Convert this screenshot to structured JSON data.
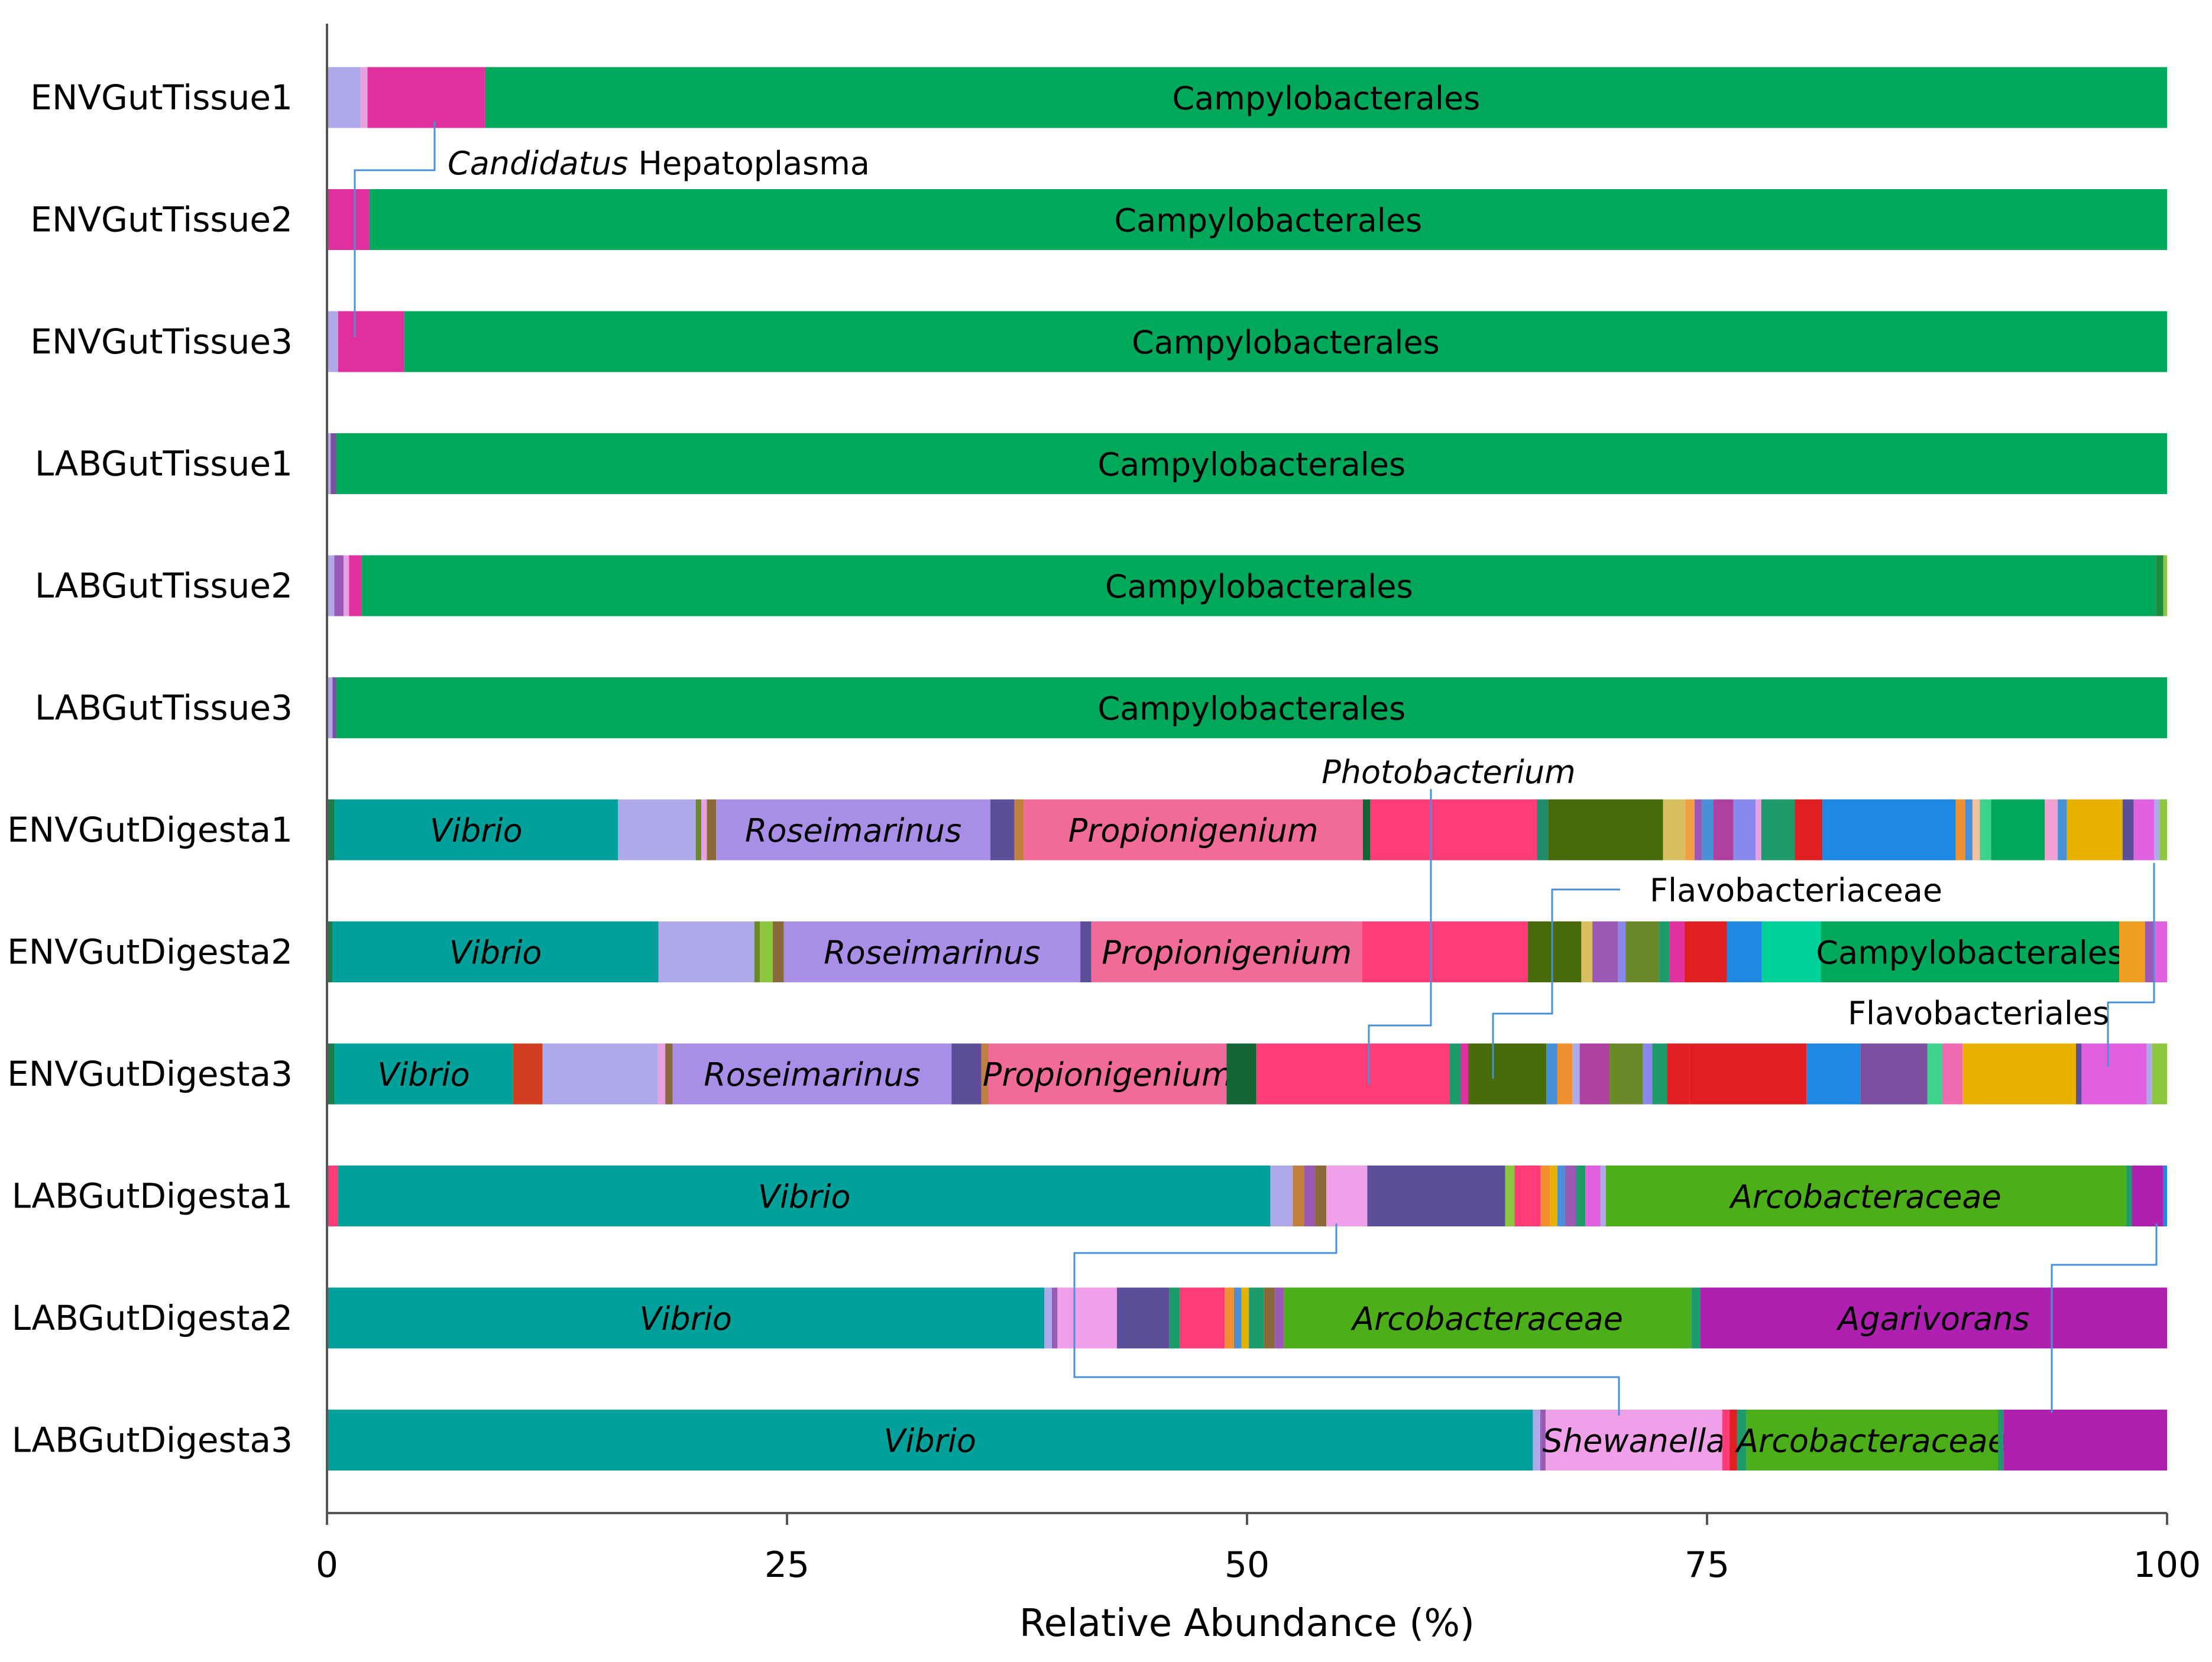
{
  "chart_data": {
    "type": "bar",
    "orientation": "horizontal",
    "stacked": true,
    "xlabel": "Relative Abundance (%)",
    "xlim": [
      0,
      100
    ],
    "xticks": [
      "0",
      "25",
      "50",
      "75",
      "100"
    ],
    "grid": false,
    "categories": [
      "ENVGutTissue1",
      "ENVGutTissue2",
      "ENVGutTissue3",
      "LABGutTissue1",
      "LABGutTissue2",
      "LABGutTissue3",
      "ENVGutDigesta1",
      "ENVGutDigesta2",
      "ENVGutDigesta3",
      "LABGutDigesta1",
      "LABGutDigesta2",
      "LABGutDigesta3"
    ],
    "samples": [
      {
        "segments": [
          {
            "v": 1.8,
            "c": "#aeaaea"
          },
          {
            "v": 0.4,
            "c": "#e8a0e0"
          },
          {
            "v": 6.4,
            "c": "#e0309f"
          },
          {
            "v": 91.4,
            "c": "#00a85a",
            "label": "Campylobacterales",
            "italic": false
          }
        ]
      },
      {
        "segments": [
          {
            "v": 2.3,
            "c": "#e0309f"
          },
          {
            "v": 97.7,
            "c": "#00a85a",
            "label": "Campylobacterales",
            "italic": false
          }
        ]
      },
      {
        "segments": [
          {
            "v": 0.6,
            "c": "#aeaaea"
          },
          {
            "v": 3.6,
            "c": "#e0309f"
          },
          {
            "v": 95.8,
            "c": "#00a85a",
            "label": "Campylobacterales",
            "italic": false
          }
        ]
      },
      {
        "segments": [
          {
            "v": 0.2,
            "c": "#aeaaea"
          },
          {
            "v": 0.3,
            "c": "#7a4fa0"
          },
          {
            "v": 99.5,
            "c": "#00a85a",
            "label": "Campylobacterales",
            "italic": false
          }
        ]
      },
      {
        "segments": [
          {
            "v": 0.4,
            "c": "#aeaaea"
          },
          {
            "v": 0.5,
            "c": "#9b59b6"
          },
          {
            "v": 0.3,
            "c": "#e8a0e0"
          },
          {
            "v": 0.7,
            "c": "#e0309f"
          },
          {
            "v": 97.5,
            "c": "#00a85a",
            "label": "Campylobacterales",
            "italic": false
          },
          {
            "v": 0.4,
            "c": "#1f8c3b"
          },
          {
            "v": 0.2,
            "c": "#8dc63f"
          }
        ]
      },
      {
        "segments": [
          {
            "v": 0.3,
            "c": "#aeaaea"
          },
          {
            "v": 0.2,
            "c": "#7a4fa0"
          },
          {
            "v": 99.5,
            "c": "#00a85a",
            "label": "Campylobacterales",
            "italic": false
          }
        ]
      },
      {
        "segments": [
          {
            "v": 0.4,
            "c": "#1f7a4a"
          },
          {
            "v": 15.3,
            "c": "#00a19a",
            "label": "Vibrio",
            "italic": true
          },
          {
            "v": 4.2,
            "c": "#aeaaea"
          },
          {
            "v": 0.3,
            "c": "#6a8a2a"
          },
          {
            "v": 0.3,
            "c": "#e8a0e0"
          },
          {
            "v": 0.5,
            "c": "#8a6a3a"
          },
          {
            "v": 14.8,
            "c": "#a98ee8",
            "label": "Roseimarinus",
            "italic": true
          },
          {
            "v": 1.3,
            "c": "#5b4f9a"
          },
          {
            "v": 0.5,
            "c": "#c08040"
          },
          {
            "v": 18.3,
            "c": "#f06a9a",
            "label": "Propionigenium",
            "italic": true
          },
          {
            "v": 0.4,
            "c": "#116633"
          },
          {
            "v": 9.0,
            "c": "#ff3b78"
          },
          {
            "v": 0.6,
            "c": "#1f8c6a"
          },
          {
            "v": 6.2,
            "c": "#476a0a"
          },
          {
            "v": 1.2,
            "c": "#d8c060"
          },
          {
            "v": 0.5,
            "c": "#f0a040"
          },
          {
            "v": 0.4,
            "c": "#9b59b6"
          },
          {
            "v": 0.6,
            "c": "#4a90d9"
          },
          {
            "v": 1.1,
            "c": "#b040a0"
          },
          {
            "v": 1.2,
            "c": "#8888ee"
          },
          {
            "v": 0.3,
            "c": "#e8a0e0"
          },
          {
            "v": 1.8,
            "c": "#1f9a6a"
          },
          {
            "v": 1.5,
            "c": "#e02020"
          },
          {
            "v": 7.2,
            "c": "#1e88e5"
          },
          {
            "v": 0.5,
            "c": "#f09030"
          },
          {
            "v": 0.4,
            "c": "#4a90d9"
          },
          {
            "v": 0.4,
            "c": "#f0c0a0"
          },
          {
            "v": 0.6,
            "c": "#3dd38a"
          },
          {
            "v": 2.9,
            "c": "#00a85a"
          },
          {
            "v": 0.7,
            "c": "#f0a0d0"
          },
          {
            "v": 0.5,
            "c": "#4a90d9"
          },
          {
            "v": 3.0,
            "c": "#e8b000"
          },
          {
            "v": 0.6,
            "c": "#5b4f9a"
          },
          {
            "v": 1.1,
            "c": "#e060e0"
          },
          {
            "v": 0.3,
            "c": "#aeaaea"
          },
          {
            "v": 0.4,
            "c": "#8dc63f"
          }
        ]
      },
      {
        "segments": [
          {
            "v": 0.3,
            "c": "#1f7a4a"
          },
          {
            "v": 17.7,
            "c": "#00a19a",
            "label": "Vibrio",
            "italic": true
          },
          {
            "v": 5.2,
            "c": "#aeaaea"
          },
          {
            "v": 0.3,
            "c": "#6a8a2a"
          },
          {
            "v": 0.7,
            "c": "#8dc63f"
          },
          {
            "v": 0.6,
            "c": "#8a6a3a"
          },
          {
            "v": 16.1,
            "c": "#a98ee8",
            "label": "Roseimarinus",
            "italic": true
          },
          {
            "v": 0.6,
            "c": "#5b4f9a"
          },
          {
            "v": 14.7,
            "c": "#f06a9a",
            "label": "Propionigenium",
            "italic": true
          },
          {
            "v": 9.0,
            "c": "#ff3b78"
          },
          {
            "v": 2.9,
            "c": "#476a0a"
          },
          {
            "v": 0.6,
            "c": "#d8c060"
          },
          {
            "v": 1.4,
            "c": "#9b59b6"
          },
          {
            "v": 0.4,
            "c": "#8888ee"
          },
          {
            "v": 1.8,
            "c": "#6a8a2a"
          },
          {
            "v": 0.6,
            "c": "#1f9a6a"
          },
          {
            "v": 0.8,
            "c": "#e0309f"
          },
          {
            "v": 2.3,
            "c": "#e02020"
          },
          {
            "v": 1.9,
            "c": "#1e88e5"
          },
          {
            "v": 3.2,
            "c": "#00d09a"
          },
          {
            "v": 16.2,
            "c": "#00a85a",
            "label": "Campylobacterales",
            "italic": false
          },
          {
            "v": 1.4,
            "c": "#f0a020"
          },
          {
            "v": 0.5,
            "c": "#9b59b6"
          },
          {
            "v": 0.7,
            "c": "#e060e0"
          }
        ]
      },
      {
        "segments": [
          {
            "v": 0.4,
            "c": "#1f7a4a"
          },
          {
            "v": 9.6,
            "c": "#00a19a",
            "label": "Vibrio",
            "italic": true
          },
          {
            "v": 1.6,
            "c": "#d04020"
          },
          {
            "v": 6.2,
            "c": "#aeaaea"
          },
          {
            "v": 0.4,
            "c": "#e8a0e0"
          },
          {
            "v": 0.4,
            "c": "#8a6a3a"
          },
          {
            "v": 15.0,
            "c": "#a98ee8",
            "label": "Roseimarinus",
            "italic": true
          },
          {
            "v": 1.6,
            "c": "#5b4f9a"
          },
          {
            "v": 0.4,
            "c": "#c08040"
          },
          {
            "v": 12.8,
            "c": "#f06a9a",
            "label": "Propionigenium",
            "italic": true
          },
          {
            "v": 1.6,
            "c": "#116633"
          },
          {
            "v": 10.4,
            "c": "#ff3b78"
          },
          {
            "v": 0.6,
            "c": "#1f9a6a"
          },
          {
            "v": 0.4,
            "c": "#e0309f"
          },
          {
            "v": 4.2,
            "c": "#476a0a"
          },
          {
            "v": 0.6,
            "c": "#4a90d9"
          },
          {
            "v": 0.8,
            "c": "#f09030"
          },
          {
            "v": 0.4,
            "c": "#aeaaea"
          },
          {
            "v": 1.6,
            "c": "#b040a0"
          },
          {
            "v": 1.8,
            "c": "#6a8a2a"
          },
          {
            "v": 0.5,
            "c": "#8888ee"
          },
          {
            "v": 0.8,
            "c": "#1f9a6a"
          },
          {
            "v": 1.2,
            "c": "#e02020"
          },
          {
            "v": 6.3,
            "c": "#e02020"
          },
          {
            "v": 2.9,
            "c": "#1e88e5"
          },
          {
            "v": 3.6,
            "c": "#7a4fa0"
          },
          {
            "v": 0.8,
            "c": "#3dd38a"
          },
          {
            "v": 1.1,
            "c": "#f06ab0"
          },
          {
            "v": 6.1,
            "c": "#e8b000"
          },
          {
            "v": 0.3,
            "c": "#5b4f9a"
          },
          {
            "v": 3.5,
            "c": "#e060e0"
          },
          {
            "v": 0.3,
            "c": "#aeaaea"
          },
          {
            "v": 0.8,
            "c": "#8dc63f"
          }
        ]
      },
      {
        "segments": [
          {
            "v": 0.6,
            "c": "#ff3b78"
          },
          {
            "v": 50.0,
            "c": "#00a19a",
            "label": "Vibrio",
            "italic": true
          },
          {
            "v": 1.2,
            "c": "#aeaaea"
          },
          {
            "v": 0.6,
            "c": "#c08040"
          },
          {
            "v": 0.6,
            "c": "#9b59b6"
          },
          {
            "v": 0.6,
            "c": "#8a6a3a"
          },
          {
            "v": 2.2,
            "c": "#f0a0e8"
          },
          {
            "v": 7.4,
            "c": "#5b4f9a"
          },
          {
            "v": 0.5,
            "c": "#8dc63f"
          },
          {
            "v": 1.4,
            "c": "#ff3b78"
          },
          {
            "v": 0.5,
            "c": "#f09030"
          },
          {
            "v": 0.4,
            "c": "#e8b000"
          },
          {
            "v": 0.4,
            "c": "#4a90d9"
          },
          {
            "v": 0.6,
            "c": "#9b59b6"
          },
          {
            "v": 0.5,
            "c": "#1f9a6a"
          },
          {
            "v": 0.8,
            "c": "#e060e0"
          },
          {
            "v": 0.3,
            "c": "#aeaaea"
          },
          {
            "v": 27.9,
            "c": "#4caf19",
            "label": "Arcobacteraceae",
            "italic": true
          },
          {
            "v": 0.3,
            "c": "#1f9a6a"
          },
          {
            "v": 1.7,
            "c": "#b020b0"
          },
          {
            "v": 0.2,
            "c": "#1e88e5"
          }
        ]
      },
      {
        "segments": [
          {
            "v": 38.6,
            "c": "#00a19a",
            "label": "Vibrio",
            "italic": true
          },
          {
            "v": 0.4,
            "c": "#aeaaea"
          },
          {
            "v": 0.3,
            "c": "#9b59b6"
          },
          {
            "v": 3.2,
            "c": "#f0a0e8"
          },
          {
            "v": 2.8,
            "c": "#5b4f9a"
          },
          {
            "v": 0.6,
            "c": "#1f9a6a"
          },
          {
            "v": 2.4,
            "c": "#ff3b78"
          },
          {
            "v": 0.5,
            "c": "#f09030"
          },
          {
            "v": 0.4,
            "c": "#4a90d9"
          },
          {
            "v": 0.4,
            "c": "#e8b000"
          },
          {
            "v": 0.8,
            "c": "#1f9a6a"
          },
          {
            "v": 0.6,
            "c": "#8a6a3a"
          },
          {
            "v": 0.5,
            "c": "#9b59b6"
          },
          {
            "v": 21.9,
            "c": "#4caf19",
            "label": "Arcobacteraceae",
            "italic": true
          },
          {
            "v": 0.5,
            "c": "#1f9a6a"
          },
          {
            "v": 25.1,
            "c": "#b020b0",
            "label": "Agarivorans",
            "italic": true
          }
        ]
      },
      {
        "segments": [
          {
            "v": 65.6,
            "c": "#00a19a",
            "label": "Vibrio",
            "italic": true
          },
          {
            "v": 0.4,
            "c": "#aeaaea"
          },
          {
            "v": 0.3,
            "c": "#9b59b6"
          },
          {
            "v": 9.6,
            "c": "#f0a0e8",
            "label": "Shewanella",
            "italic": true
          },
          {
            "v": 0.4,
            "c": "#ff3b78"
          },
          {
            "v": 0.4,
            "c": "#e02020"
          },
          {
            "v": 0.5,
            "c": "#1f9a6a"
          },
          {
            "v": 13.7,
            "c": "#4caf19",
            "label": "Arcobacteraceae",
            "italic": true
          },
          {
            "v": 0.3,
            "c": "#1f9a6a"
          },
          {
            "v": 8.9,
            "c": "#b020b0"
          }
        ]
      }
    ],
    "annotations": [
      {
        "italic": "Candidatus",
        "text": " Hepatoplasma"
      },
      {
        "italic": "Photobacterium",
        "text": ""
      },
      {
        "italic": "",
        "text": "Flavobacteriaceae"
      },
      {
        "italic": "",
        "text": "Flavobacteriales"
      }
    ],
    "leader_color": "#4a90d9"
  }
}
